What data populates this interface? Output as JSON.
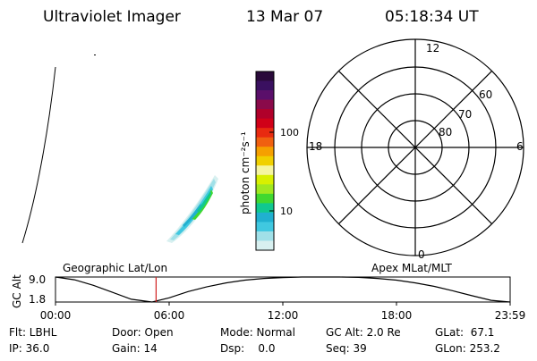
{
  "header": {
    "instrument": "Ultraviolet Imager",
    "date": "13 Mar 07",
    "time": "05:18:34 UT"
  },
  "colorbar": {
    "label": "photon cm⁻²s⁻¹",
    "ticks": [
      "100",
      "10"
    ],
    "colors": [
      "#2a0a3a",
      "#3a1060",
      "#5a0f6a",
      "#8a0a4a",
      "#b0002a",
      "#d00018",
      "#e82a10",
      "#f06010",
      "#f5a000",
      "#f0d000",
      "#f5f5a0",
      "#d8f000",
      "#a0e820",
      "#40d830",
      "#10c890",
      "#20b0d0",
      "#40c8e0",
      "#a0e0e8",
      "#d8f0f0"
    ]
  },
  "polar": {
    "mlt_labels": [
      "12",
      "18",
      "6",
      "0"
    ],
    "lat_labels": [
      "60",
      "70",
      "80"
    ]
  },
  "chart_data": {
    "type": "line",
    "title": "",
    "left_label": "Geographic Lat/Lon",
    "right_label": "Apex MLat/MLT",
    "ylabel": "GC Alt",
    "y_ticks": [
      "9.0",
      "1.8"
    ],
    "x_ticks": [
      "00:00",
      "06:00",
      "12:00",
      "18:00",
      "23:59"
    ],
    "xlim_hours": [
      0,
      24
    ],
    "ylim": [
      1.8,
      9.0
    ],
    "current_time_hours": 5.31,
    "series": [
      {
        "x": [
          0,
          1,
          2,
          3,
          4,
          5.1,
          6,
          7,
          8,
          9,
          10,
          11,
          12,
          13,
          14,
          15,
          16,
          17,
          18,
          19,
          20,
          21,
          22,
          23,
          24
        ],
        "values": [
          9.0,
          8.2,
          6.6,
          4.6,
          2.6,
          1.8,
          3.0,
          4.8,
          6.2,
          7.3,
          8.1,
          8.6,
          8.85,
          9.0,
          9.0,
          9.0,
          8.9,
          8.6,
          8.1,
          7.3,
          6.3,
          5.0,
          3.6,
          2.3,
          1.8
        ]
      }
    ]
  },
  "status": {
    "flt": "Flt: LBHL",
    "ip": "IP: 36.0",
    "door": "Door: Open",
    "gain": "Gain: 14",
    "mode": "Mode: Normal",
    "dsp": "Dsp:    0.0",
    "gcalt": "GC Alt: 2.0 Re",
    "seq": "Seq: 39",
    "glat": "GLat:  67.1",
    "glon": "GLon: 253.2"
  }
}
